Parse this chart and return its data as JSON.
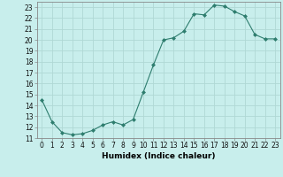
{
  "x": [
    0,
    1,
    2,
    3,
    4,
    5,
    6,
    7,
    8,
    9,
    10,
    11,
    12,
    13,
    14,
    15,
    16,
    17,
    18,
    19,
    20,
    21,
    22,
    23
  ],
  "y": [
    14.5,
    12.5,
    11.5,
    11.3,
    11.4,
    11.7,
    12.2,
    12.5,
    12.2,
    12.7,
    15.2,
    17.7,
    20.0,
    20.2,
    20.8,
    22.4,
    22.3,
    23.2,
    23.1,
    22.6,
    22.2,
    20.5,
    20.1,
    20.1
  ],
  "xlabel": "Humidex (Indice chaleur)",
  "line_color": "#2e7d6e",
  "marker": "D",
  "marker_size": 2,
  "background_color": "#c8eeec",
  "grid_color": "#b0d8d5",
  "ylim": [
    11,
    23.5
  ],
  "xlim": [
    -0.5,
    23.5
  ],
  "yticks": [
    11,
    12,
    13,
    14,
    15,
    16,
    17,
    18,
    19,
    20,
    21,
    22,
    23
  ],
  "xticks": [
    0,
    1,
    2,
    3,
    4,
    5,
    6,
    7,
    8,
    9,
    10,
    11,
    12,
    13,
    14,
    15,
    16,
    17,
    18,
    19,
    20,
    21,
    22,
    23
  ],
  "tick_fontsize": 5.5,
  "xlabel_fontsize": 6.5
}
